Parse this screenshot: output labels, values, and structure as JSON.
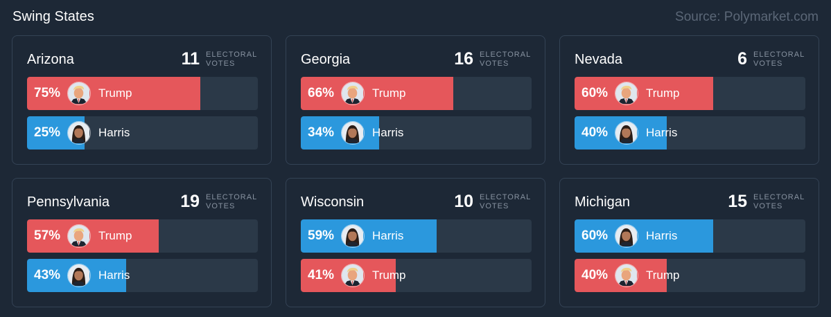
{
  "header": {
    "title": "Swing States",
    "source": "Source: Polymarket.com"
  },
  "colors": {
    "background": "#1d2836",
    "trump": "#e5575b",
    "harris": "#2b98dd",
    "track": "#2b3948",
    "border": "#344355"
  },
  "cards": [
    {
      "state": "Arizona",
      "ev": "11",
      "ev_label_1": "ELECTORAL",
      "ev_label_2": "VOTES",
      "rows": [
        {
          "pct_label": "75%",
          "pct": 75,
          "candidate": "Trump",
          "party": "trump",
          "avatar_icon": "trump-avatar-icon"
        },
        {
          "pct_label": "25%",
          "pct": 25,
          "candidate": "Harris",
          "party": "harris",
          "avatar_icon": "harris-avatar-icon"
        }
      ]
    },
    {
      "state": "Georgia",
      "ev": "16",
      "ev_label_1": "ELECTORAL",
      "ev_label_2": "VOTES",
      "rows": [
        {
          "pct_label": "66%",
          "pct": 66,
          "candidate": "Trump",
          "party": "trump",
          "avatar_icon": "trump-avatar-icon"
        },
        {
          "pct_label": "34%",
          "pct": 34,
          "candidate": "Harris",
          "party": "harris",
          "avatar_icon": "harris-avatar-icon"
        }
      ]
    },
    {
      "state": "Nevada",
      "ev": "6",
      "ev_label_1": "ELECTORAL",
      "ev_label_2": "VOTES",
      "rows": [
        {
          "pct_label": "60%",
          "pct": 60,
          "candidate": "Trump",
          "party": "trump",
          "avatar_icon": "trump-avatar-icon"
        },
        {
          "pct_label": "40%",
          "pct": 40,
          "candidate": "Harris",
          "party": "harris",
          "avatar_icon": "harris-avatar-icon"
        }
      ]
    },
    {
      "state": "Pennsylvania",
      "ev": "19",
      "ev_label_1": "ELECTORAL",
      "ev_label_2": "VOTES",
      "rows": [
        {
          "pct_label": "57%",
          "pct": 57,
          "candidate": "Trump",
          "party": "trump",
          "avatar_icon": "trump-avatar-icon"
        },
        {
          "pct_label": "43%",
          "pct": 43,
          "candidate": "Harris",
          "party": "harris",
          "avatar_icon": "harris-avatar-icon"
        }
      ]
    },
    {
      "state": "Wisconsin",
      "ev": "10",
      "ev_label_1": "ELECTORAL",
      "ev_label_2": "VOTES",
      "rows": [
        {
          "pct_label": "59%",
          "pct": 59,
          "candidate": "Harris",
          "party": "harris",
          "avatar_icon": "harris-avatar-icon"
        },
        {
          "pct_label": "41%",
          "pct": 41,
          "candidate": "Trump",
          "party": "trump",
          "avatar_icon": "trump-avatar-icon"
        }
      ]
    },
    {
      "state": "Michigan",
      "ev": "15",
      "ev_label_1": "ELECTORAL",
      "ev_label_2": "VOTES",
      "rows": [
        {
          "pct_label": "60%",
          "pct": 60,
          "candidate": "Harris",
          "party": "harris",
          "avatar_icon": "harris-avatar-icon"
        },
        {
          "pct_label": "40%",
          "pct": 40,
          "candidate": "Trump",
          "party": "trump",
          "avatar_icon": "trump-avatar-icon"
        }
      ]
    }
  ]
}
